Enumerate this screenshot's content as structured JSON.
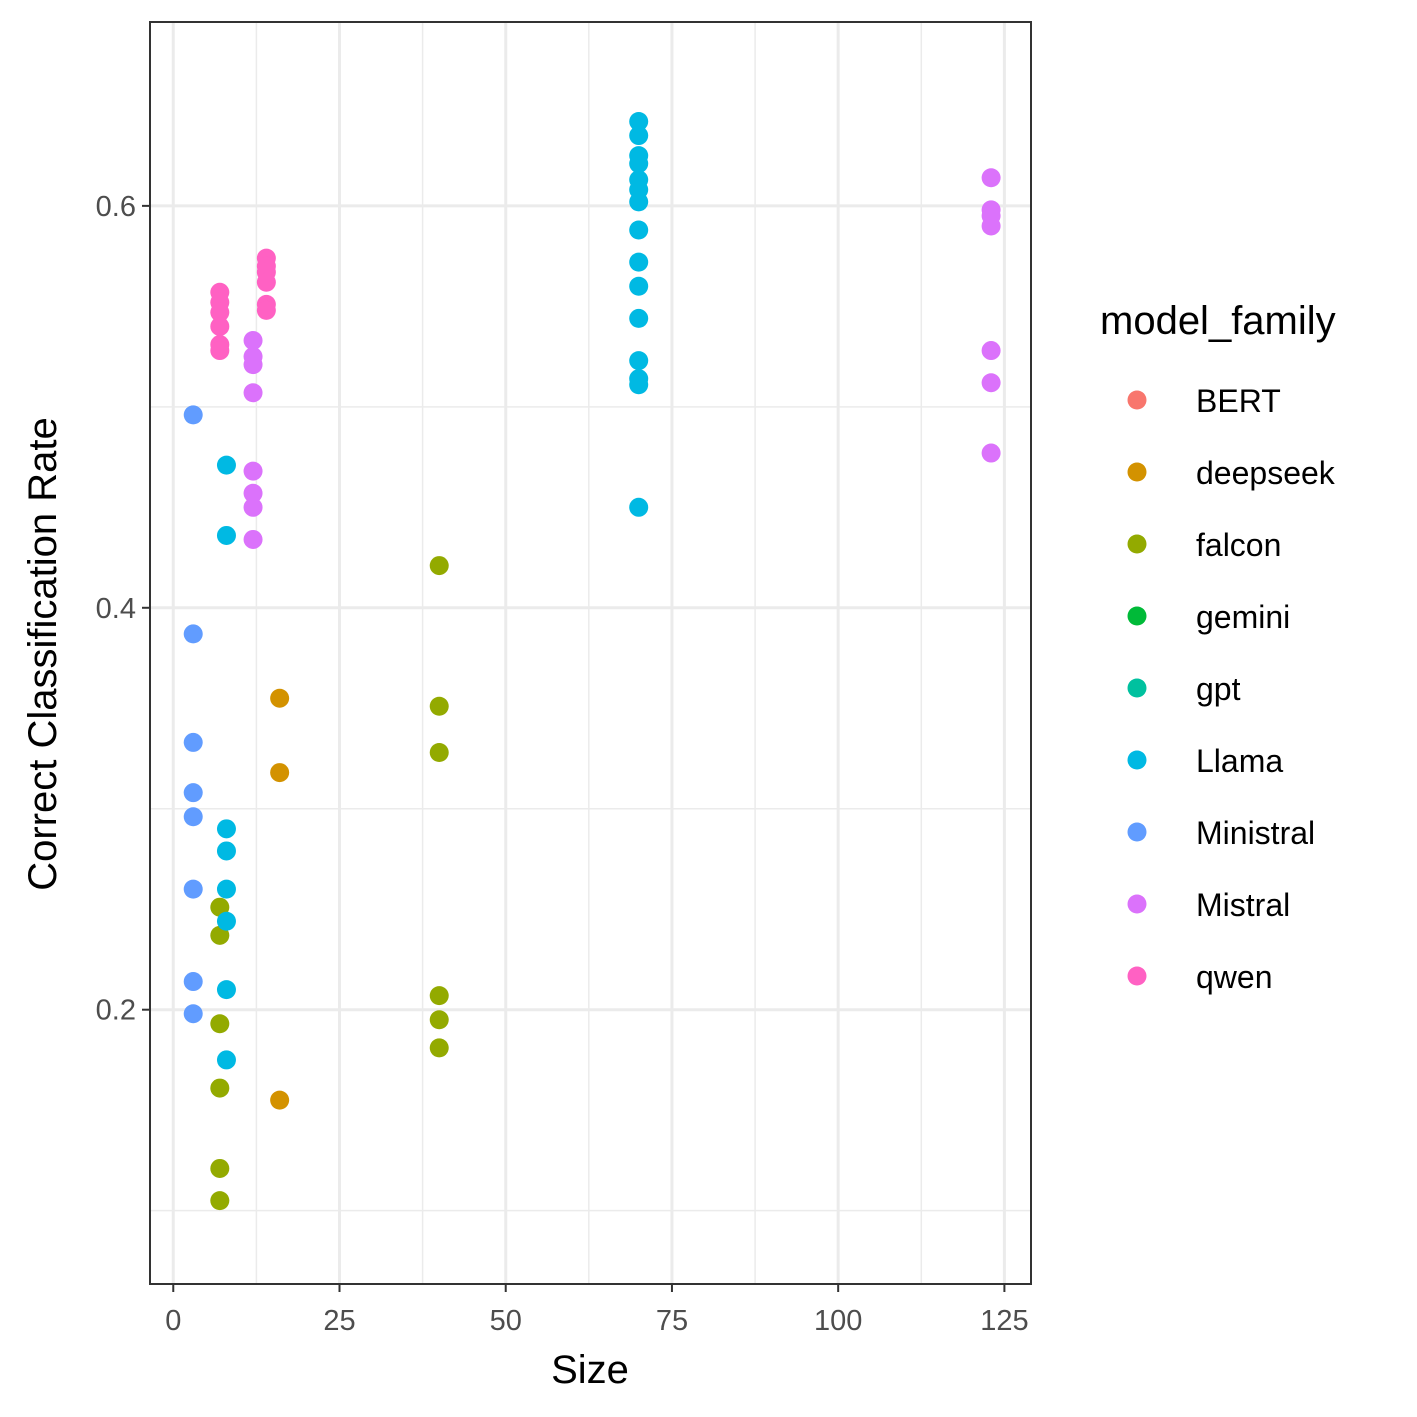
{
  "chart_data": {
    "type": "scatter",
    "xlabel": "Size",
    "ylabel": "Correct Classification Rate",
    "xlim": [
      -3.5,
      129
    ],
    "ylim": [
      0.0635,
      0.6915
    ],
    "x_ticks": [
      0,
      25,
      50,
      75,
      100,
      125
    ],
    "x_tick_labels": [
      "0",
      "25",
      "50",
      "75",
      "100",
      "125"
    ],
    "x_minor_ticks": [
      12.5,
      37.5,
      62.5,
      87.5,
      112.5
    ],
    "y_ticks": [
      0.2,
      0.4,
      0.6
    ],
    "y_tick_labels": [
      "0.2",
      "0.4",
      "0.6"
    ],
    "y_minor_ticks": [
      0.1,
      0.3,
      0.5
    ],
    "grid": true,
    "legend": {
      "title": "model_family",
      "placement": "right",
      "entries": [
        {
          "label": "BERT",
          "color": "#F8766D"
        },
        {
          "label": "deepseek",
          "color": "#D39200"
        },
        {
          "label": "falcon",
          "color": "#93AA00"
        },
        {
          "label": "gemini",
          "color": "#00BA38"
        },
        {
          "label": "gpt",
          "color": "#00C19F"
        },
        {
          "label": "Llama",
          "color": "#00B9E3"
        },
        {
          "label": "Ministral",
          "color": "#619CFF"
        },
        {
          "label": "Mistral",
          "color": "#DB72FB"
        },
        {
          "label": "qwen",
          "color": "#FF61C3"
        }
      ]
    },
    "series": [
      {
        "name": "deepseek",
        "color": "#D39200",
        "points": [
          [
            16,
            0.355
          ],
          [
            16,
            0.318
          ],
          [
            16,
            0.155
          ]
        ]
      },
      {
        "name": "falcon",
        "color": "#93AA00",
        "points": [
          [
            7,
            0.251
          ],
          [
            7,
            0.237
          ],
          [
            7,
            0.193
          ],
          [
            7,
            0.161
          ],
          [
            7,
            0.121
          ],
          [
            7,
            0.105
          ],
          [
            40,
            0.421
          ],
          [
            40,
            0.351
          ],
          [
            40,
            0.328
          ],
          [
            40,
            0.207
          ],
          [
            40,
            0.195
          ],
          [
            40,
            0.181
          ]
        ]
      },
      {
        "name": "Llama",
        "color": "#00B9E3",
        "points": [
          [
            8,
            0.471
          ],
          [
            8,
            0.436
          ],
          [
            8,
            0.29
          ],
          [
            8,
            0.279
          ],
          [
            8,
            0.26
          ],
          [
            8,
            0.244
          ],
          [
            8,
            0.21
          ],
          [
            8,
            0.175
          ],
          [
            70,
            0.642
          ],
          [
            70,
            0.635
          ],
          [
            70,
            0.625
          ],
          [
            70,
            0.621
          ],
          [
            70,
            0.613
          ],
          [
            70,
            0.608
          ],
          [
            70,
            0.602
          ],
          [
            70,
            0.588
          ],
          [
            70,
            0.572
          ],
          [
            70,
            0.56
          ],
          [
            70,
            0.544
          ],
          [
            70,
            0.523
          ],
          [
            70,
            0.514
          ],
          [
            70,
            0.511
          ],
          [
            70,
            0.45
          ]
        ]
      },
      {
        "name": "Ministral",
        "color": "#619CFF",
        "points": [
          [
            3,
            0.496
          ],
          [
            3,
            0.387
          ],
          [
            3,
            0.333
          ],
          [
            3,
            0.308
          ],
          [
            3,
            0.296
          ],
          [
            3,
            0.26
          ],
          [
            3,
            0.214
          ],
          [
            3,
            0.198
          ]
        ]
      },
      {
        "name": "Mistral",
        "color": "#DB72FB",
        "points": [
          [
            12,
            0.533
          ],
          [
            12,
            0.525
          ],
          [
            12,
            0.521
          ],
          [
            12,
            0.507
          ],
          [
            12,
            0.468
          ],
          [
            12,
            0.457
          ],
          [
            12,
            0.45
          ],
          [
            12,
            0.434
          ],
          [
            123,
            0.614
          ],
          [
            123,
            0.598
          ],
          [
            123,
            0.595
          ],
          [
            123,
            0.59
          ],
          [
            123,
            0.528
          ],
          [
            123,
            0.512
          ],
          [
            123,
            0.477
          ]
        ]
      },
      {
        "name": "qwen",
        "color": "#FF61C3",
        "points": [
          [
            7,
            0.557
          ],
          [
            7,
            0.552
          ],
          [
            7,
            0.547
          ],
          [
            7,
            0.54
          ],
          [
            7,
            0.531
          ],
          [
            7,
            0.528
          ],
          [
            14,
            0.574
          ],
          [
            14,
            0.57
          ],
          [
            14,
            0.567
          ],
          [
            14,
            0.562
          ],
          [
            14,
            0.551
          ],
          [
            14,
            0.548
          ]
        ]
      }
    ]
  }
}
